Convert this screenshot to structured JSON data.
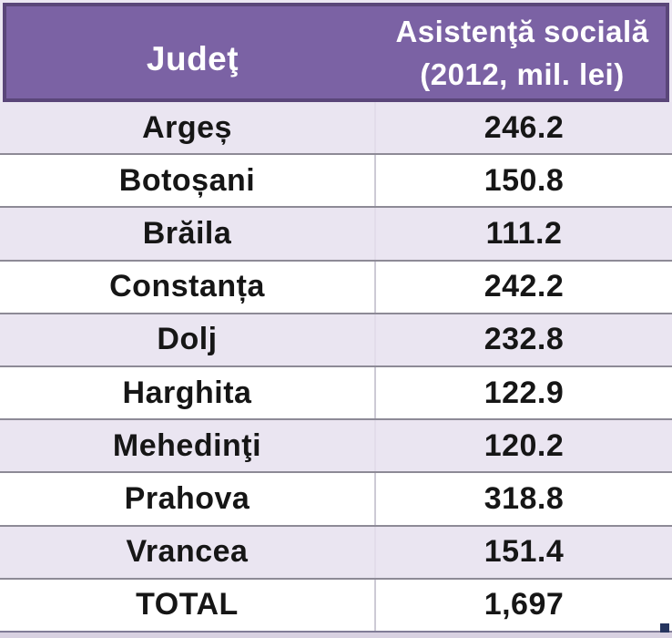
{
  "table": {
    "header": {
      "col1": "Judeţ",
      "col2_line1": "Asistenţă socială",
      "col2_line2": "(2012, mil. lei)"
    },
    "rows": [
      {
        "county": "Argeș",
        "value": "246.2"
      },
      {
        "county": "Botoșani",
        "value": "150.8"
      },
      {
        "county": "Brăila",
        "value": "111.2"
      },
      {
        "county": "Constanța",
        "value": "242.2"
      },
      {
        "county": "Dolj",
        "value": "232.8"
      },
      {
        "county": "Harghita",
        "value": "122.9"
      },
      {
        "county": "Mehedinţi",
        "value": "120.2"
      },
      {
        "county": "Prahova",
        "value": "318.8"
      },
      {
        "county": "Vrancea",
        "value": "151.4"
      },
      {
        "county": "TOTAL",
        "value": "1,697"
      }
    ]
  },
  "chart_data": {
    "type": "table",
    "title": "Asistenţă socială (2012, mil. lei) pe judeţe",
    "columns": [
      "Judeţ",
      "Asistenţă socială (2012, mil. lei)"
    ],
    "categories": [
      "Argeș",
      "Botoșani",
      "Brăila",
      "Constanța",
      "Dolj",
      "Harghita",
      "Mehedinţi",
      "Prahova",
      "Vrancea"
    ],
    "values": [
      246.2,
      150.8,
      111.2,
      242.2,
      232.8,
      122.9,
      120.2,
      318.8,
      151.4
    ],
    "total_label": "TOTAL",
    "total_value": 1697
  },
  "colors": {
    "header_bg": "#7B62A4",
    "header_border": "#5A4679",
    "band_row_bg": "#EAE5F1",
    "white_row_bg": "#FFFFFF",
    "row_divider": "#8D8A96",
    "outer_margin": "#ECE7F2",
    "handle": "#26355F",
    "text": "#161616",
    "header_text": "#FFFFFF"
  }
}
